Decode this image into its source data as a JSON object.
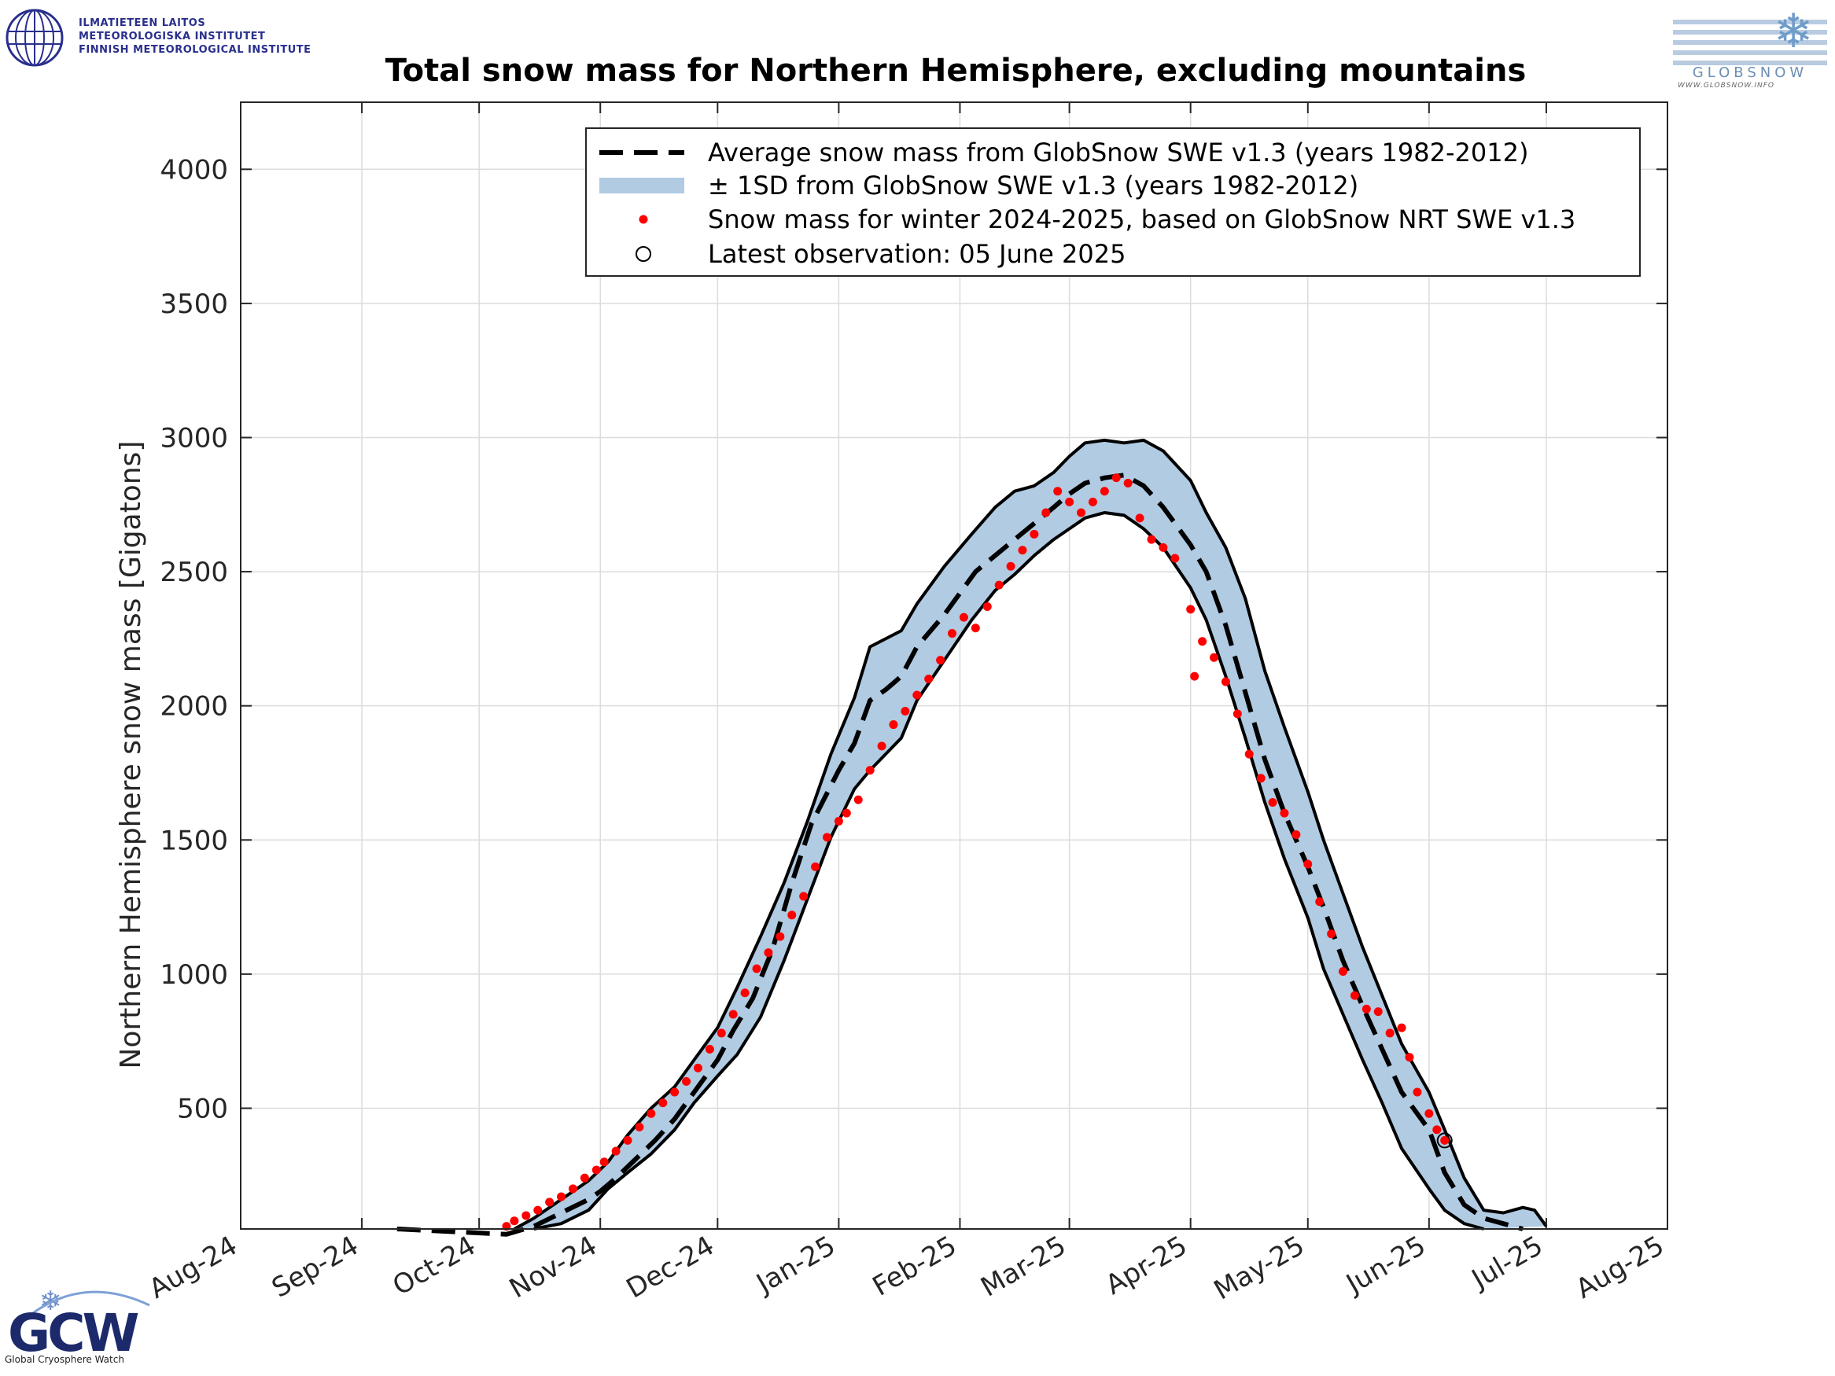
{
  "logos": {
    "fmi": {
      "line1": "ILMATIETEEN LAITOS",
      "line2": "METEOROLOGISKA INSTITUTET",
      "line3": "FINNISH METEOROLOGICAL INSTITUTE"
    },
    "globsnow": {
      "wordmark": "GLOBSNOW",
      "url": "WWW.GLOBSNOW.INFO"
    },
    "gcw": {
      "mark": "GCW",
      "caption": "Global Cryosphere Watch"
    }
  },
  "colors": {
    "band": "#b1cbe3",
    "observations": "#ff0000",
    "lines": "#000000",
    "grid": "#dcdcdc"
  },
  "chart_data": {
    "type": "line",
    "title": "Total snow mass for Northern Hemisphere, excluding mountains",
    "xlabel": "",
    "ylabel": "Northern Hemisphere snow mass [Gigatons]",
    "x_tick_labels": [
      "Aug-24",
      "Sep-24",
      "Oct-24",
      "Nov-24",
      "Dec-24",
      "Jan-25",
      "Feb-25",
      "Mar-25",
      "Apr-25",
      "May-25",
      "Jun-25",
      "Jul-25",
      "Aug-25"
    ],
    "x_tick_dates": [
      "2024-08-01",
      "2024-09-01",
      "2024-10-01",
      "2024-11-01",
      "2024-12-01",
      "2025-01-01",
      "2025-02-01",
      "2025-03-01",
      "2025-04-01",
      "2025-05-01",
      "2025-06-01",
      "2025-07-01",
      "2025-08-01"
    ],
    "xlim": [
      "2024-08-01",
      "2025-08-01"
    ],
    "ylim": [
      50,
      4250
    ],
    "y_ticks": [
      500,
      1000,
      1500,
      2000,
      2500,
      3000,
      3500,
      4000
    ],
    "grid": true,
    "legend_position": "top-right",
    "legend": [
      "Average snow mass from GlobSnow SWE v1.3 (years 1982-2012)",
      "± 1SD from GlobSnow SWE v1.3 (years 1982-2012)",
      "Snow mass for winter 2024-2025, based on GlobSnow NRT SWE v1.3",
      "Latest observation: 05 June 2025"
    ],
    "series": [
      {
        "name": "Average snow mass from GlobSnow SWE v1.3 (years 1982-2012)",
        "style": "dashed",
        "points": [
          [
            "2024-09-10",
            50
          ],
          [
            "2024-10-08",
            30
          ],
          [
            "2024-10-15",
            60
          ],
          [
            "2024-10-22",
            110
          ],
          [
            "2024-10-29",
            160
          ],
          [
            "2024-11-01",
            190
          ],
          [
            "2024-11-05",
            240
          ],
          [
            "2024-11-10",
            310
          ],
          [
            "2024-11-15",
            380
          ],
          [
            "2024-11-20",
            460
          ],
          [
            "2024-11-25",
            560
          ],
          [
            "2024-12-01",
            680
          ],
          [
            "2024-12-05",
            790
          ],
          [
            "2024-12-10",
            910
          ],
          [
            "2024-12-15",
            1090
          ],
          [
            "2024-12-20",
            1340
          ],
          [
            "2024-12-25",
            1560
          ],
          [
            "2025-01-01",
            1760
          ],
          [
            "2025-01-05",
            1860
          ],
          [
            "2025-01-09",
            2020
          ],
          [
            "2025-01-13",
            2060
          ],
          [
            "2025-01-17",
            2110
          ],
          [
            "2025-01-21",
            2220
          ],
          [
            "2025-01-28",
            2340
          ],
          [
            "2025-02-05",
            2500
          ],
          [
            "2025-02-10",
            2560
          ],
          [
            "2025-02-15",
            2620
          ],
          [
            "2025-02-20",
            2680
          ],
          [
            "2025-02-25",
            2740
          ],
          [
            "2025-03-01",
            2790
          ],
          [
            "2025-03-05",
            2830
          ],
          [
            "2025-03-10",
            2850
          ],
          [
            "2025-03-15",
            2860
          ],
          [
            "2025-03-20",
            2820
          ],
          [
            "2025-03-25",
            2740
          ],
          [
            "2025-04-01",
            2600
          ],
          [
            "2025-04-05",
            2500
          ],
          [
            "2025-04-10",
            2300
          ],
          [
            "2025-04-15",
            2050
          ],
          [
            "2025-04-20",
            1800
          ],
          [
            "2025-04-25",
            1600
          ],
          [
            "2025-05-01",
            1400
          ],
          [
            "2025-05-05",
            1250
          ],
          [
            "2025-05-10",
            1050
          ],
          [
            "2025-05-15",
            880
          ],
          [
            "2025-05-20",
            720
          ],
          [
            "2025-05-25",
            560
          ],
          [
            "2025-06-01",
            420
          ],
          [
            "2025-06-05",
            260
          ],
          [
            "2025-06-10",
            140
          ],
          [
            "2025-06-15",
            90
          ],
          [
            "2025-06-20",
            70
          ],
          [
            "2025-06-25",
            50
          ]
        ]
      },
      {
        "name": "± 1SD from GlobSnow SWE v1.3 (years 1982-2012)",
        "type": "band",
        "upper": [
          [
            "2024-10-10",
            50
          ],
          [
            "2024-10-15",
            90
          ],
          [
            "2024-10-22",
            160
          ],
          [
            "2024-10-29",
            230
          ],
          [
            "2024-11-03",
            300
          ],
          [
            "2024-11-08",
            400
          ],
          [
            "2024-11-14",
            500
          ],
          [
            "2024-11-20",
            580
          ],
          [
            "2024-11-25",
            680
          ],
          [
            "2024-12-01",
            800
          ],
          [
            "2024-12-06",
            950
          ],
          [
            "2024-12-12",
            1140
          ],
          [
            "2024-12-18",
            1340
          ],
          [
            "2024-12-24",
            1570
          ],
          [
            "2024-12-30",
            1820
          ],
          [
            "2025-01-05",
            2030
          ],
          [
            "2025-01-09",
            2220
          ],
          [
            "2025-01-13",
            2250
          ],
          [
            "2025-01-17",
            2280
          ],
          [
            "2025-01-21",
            2380
          ],
          [
            "2025-01-28",
            2520
          ],
          [
            "2025-02-04",
            2640
          ],
          [
            "2025-02-10",
            2740
          ],
          [
            "2025-02-15",
            2800
          ],
          [
            "2025-02-20",
            2820
          ],
          [
            "2025-02-25",
            2870
          ],
          [
            "2025-03-01",
            2930
          ],
          [
            "2025-03-05",
            2980
          ],
          [
            "2025-03-10",
            2990
          ],
          [
            "2025-03-15",
            2980
          ],
          [
            "2025-03-20",
            2990
          ],
          [
            "2025-03-25",
            2950
          ],
          [
            "2025-04-01",
            2840
          ],
          [
            "2025-04-05",
            2720
          ],
          [
            "2025-04-10",
            2590
          ],
          [
            "2025-04-15",
            2400
          ],
          [
            "2025-04-20",
            2130
          ],
          [
            "2025-04-25",
            1920
          ],
          [
            "2025-05-01",
            1680
          ],
          [
            "2025-05-05",
            1500
          ],
          [
            "2025-05-10",
            1300
          ],
          [
            "2025-05-15",
            1100
          ],
          [
            "2025-05-20",
            920
          ],
          [
            "2025-05-25",
            740
          ],
          [
            "2025-06-01",
            560
          ],
          [
            "2025-06-05",
            420
          ],
          [
            "2025-06-10",
            240
          ],
          [
            "2025-06-15",
            120
          ],
          [
            "2025-06-20",
            110
          ],
          [
            "2025-06-25",
            130
          ],
          [
            "2025-06-28",
            120
          ],
          [
            "2025-07-01",
            60
          ]
        ],
        "lower": [
          [
            "2024-10-15",
            50
          ],
          [
            "2024-10-22",
            70
          ],
          [
            "2024-10-29",
            120
          ],
          [
            "2024-11-03",
            200
          ],
          [
            "2024-11-08",
            260
          ],
          [
            "2024-11-14",
            330
          ],
          [
            "2024-11-20",
            420
          ],
          [
            "2024-11-25",
            520
          ],
          [
            "2024-12-01",
            620
          ],
          [
            "2024-12-06",
            700
          ],
          [
            "2024-12-12",
            840
          ],
          [
            "2024-12-18",
            1050
          ],
          [
            "2024-12-24",
            1280
          ],
          [
            "2024-12-30",
            1510
          ],
          [
            "2025-01-05",
            1690
          ],
          [
            "2025-01-09",
            1760
          ],
          [
            "2025-01-13",
            1820
          ],
          [
            "2025-01-17",
            1880
          ],
          [
            "2025-01-21",
            2020
          ],
          [
            "2025-01-28",
            2170
          ],
          [
            "2025-02-04",
            2320
          ],
          [
            "2025-02-10",
            2430
          ],
          [
            "2025-02-15",
            2490
          ],
          [
            "2025-02-20",
            2560
          ],
          [
            "2025-02-25",
            2620
          ],
          [
            "2025-03-01",
            2660
          ],
          [
            "2025-03-05",
            2700
          ],
          [
            "2025-03-10",
            2720
          ],
          [
            "2025-03-15",
            2710
          ],
          [
            "2025-03-20",
            2660
          ],
          [
            "2025-03-25",
            2590
          ],
          [
            "2025-04-01",
            2440
          ],
          [
            "2025-04-05",
            2320
          ],
          [
            "2025-04-10",
            2110
          ],
          [
            "2025-04-15",
            1880
          ],
          [
            "2025-04-20",
            1640
          ],
          [
            "2025-04-25",
            1430
          ],
          [
            "2025-05-01",
            1210
          ],
          [
            "2025-05-05",
            1020
          ],
          [
            "2025-05-10",
            850
          ],
          [
            "2025-05-15",
            680
          ],
          [
            "2025-05-20",
            520
          ],
          [
            "2025-05-25",
            350
          ],
          [
            "2025-06-01",
            200
          ],
          [
            "2025-06-05",
            120
          ],
          [
            "2025-06-10",
            70
          ],
          [
            "2025-06-15",
            50
          ]
        ]
      },
      {
        "name": "Snow mass for winter 2024-2025, based on GlobSnow NRT SWE v1.3",
        "type": "scatter",
        "points": [
          [
            "2024-10-08",
            60
          ],
          [
            "2024-10-10",
            80
          ],
          [
            "2024-10-13",
            100
          ],
          [
            "2024-10-16",
            120
          ],
          [
            "2024-10-19",
            150
          ],
          [
            "2024-10-22",
            170
          ],
          [
            "2024-10-25",
            200
          ],
          [
            "2024-10-28",
            240
          ],
          [
            "2024-10-31",
            270
          ],
          [
            "2024-11-02",
            300
          ],
          [
            "2024-11-05",
            340
          ],
          [
            "2024-11-08",
            380
          ],
          [
            "2024-11-11",
            430
          ],
          [
            "2024-11-14",
            480
          ],
          [
            "2024-11-17",
            520
          ],
          [
            "2024-11-20",
            560
          ],
          [
            "2024-11-23",
            600
          ],
          [
            "2024-11-26",
            650
          ],
          [
            "2024-11-29",
            720
          ],
          [
            "2024-12-02",
            780
          ],
          [
            "2024-12-05",
            850
          ],
          [
            "2024-12-08",
            930
          ],
          [
            "2024-12-11",
            1020
          ],
          [
            "2024-12-14",
            1080
          ],
          [
            "2024-12-17",
            1140
          ],
          [
            "2024-12-20",
            1220
          ],
          [
            "2024-12-23",
            1290
          ],
          [
            "2024-12-26",
            1400
          ],
          [
            "2024-12-29",
            1510
          ],
          [
            "2025-01-01",
            1570
          ],
          [
            "2025-01-03",
            1600
          ],
          [
            "2025-01-06",
            1650
          ],
          [
            "2025-01-09",
            1760
          ],
          [
            "2025-01-12",
            1850
          ],
          [
            "2025-01-15",
            1930
          ],
          [
            "2025-01-18",
            1980
          ],
          [
            "2025-01-21",
            2040
          ],
          [
            "2025-01-24",
            2100
          ],
          [
            "2025-01-27",
            2170
          ],
          [
            "2025-01-30",
            2270
          ],
          [
            "2025-02-02",
            2330
          ],
          [
            "2025-02-05",
            2290
          ],
          [
            "2025-02-08",
            2370
          ],
          [
            "2025-02-11",
            2450
          ],
          [
            "2025-02-14",
            2520
          ],
          [
            "2025-02-17",
            2580
          ],
          [
            "2025-02-20",
            2640
          ],
          [
            "2025-02-23",
            2720
          ],
          [
            "2025-02-26",
            2800
          ],
          [
            "2025-03-01",
            2760
          ],
          [
            "2025-03-04",
            2720
          ],
          [
            "2025-03-07",
            2760
          ],
          [
            "2025-03-10",
            2800
          ],
          [
            "2025-03-13",
            2850
          ],
          [
            "2025-03-16",
            2830
          ],
          [
            "2025-03-19",
            2700
          ],
          [
            "2025-03-22",
            2620
          ],
          [
            "2025-03-25",
            2590
          ],
          [
            "2025-03-28",
            2550
          ],
          [
            "2025-04-01",
            2360
          ],
          [
            "2025-04-02",
            2110
          ],
          [
            "2025-04-04",
            2240
          ],
          [
            "2025-04-07",
            2180
          ],
          [
            "2025-04-10",
            2090
          ],
          [
            "2025-04-13",
            1970
          ],
          [
            "2025-04-16",
            1820
          ],
          [
            "2025-04-19",
            1730
          ],
          [
            "2025-04-22",
            1640
          ],
          [
            "2025-04-25",
            1600
          ],
          [
            "2025-04-28",
            1520
          ],
          [
            "2025-05-01",
            1410
          ],
          [
            "2025-05-04",
            1270
          ],
          [
            "2025-05-07",
            1150
          ],
          [
            "2025-05-10",
            1010
          ],
          [
            "2025-05-13",
            920
          ],
          [
            "2025-05-16",
            870
          ],
          [
            "2025-05-19",
            860
          ],
          [
            "2025-05-22",
            780
          ],
          [
            "2025-05-25",
            800
          ],
          [
            "2025-05-27",
            690
          ],
          [
            "2025-05-29",
            560
          ],
          [
            "2025-06-01",
            480
          ],
          [
            "2025-06-03",
            420
          ],
          [
            "2025-06-05",
            380
          ]
        ]
      },
      {
        "name": "Latest observation: 05 June 2025",
        "type": "marker",
        "points": [
          [
            "2025-06-05",
            380
          ]
        ]
      }
    ]
  }
}
